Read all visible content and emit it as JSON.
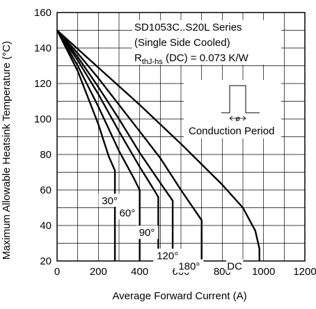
{
  "chart_data": {
    "type": "line",
    "title_lines": [
      "SD1053C..S20L Series",
      "(Single Side Cooled)"
    ],
    "rth_main": "R",
    "rth_sub": "thJ-hs",
    "rth_rest": " (DC) = 0.073 K/W",
    "inset_label": "Conduction Period",
    "inset_symbol": "ø",
    "xlabel": "Average Forward Current (A)",
    "ylabel": "Maximum Allowable Heatsink Temperature (°C)",
    "xlim": [
      0,
      1200
    ],
    "ylim": [
      20,
      160
    ],
    "x_ticks": [
      0,
      200,
      400,
      600,
      800,
      1000,
      1200
    ],
    "y_ticks": [
      20,
      40,
      60,
      80,
      100,
      120,
      140,
      160
    ],
    "grid": true,
    "series": [
      {
        "name": "30°",
        "x": [
          0,
          100,
          200,
          250,
          280,
          280
        ],
        "y": [
          150,
          127,
          97,
          79,
          71,
          20
        ]
      },
      {
        "name": "60°",
        "x": [
          0,
          100,
          200,
          300,
          370,
          400,
          400
        ],
        "y": [
          150,
          130,
          107,
          82,
          67,
          60,
          20
        ]
      },
      {
        "name": "90°",
        "x": [
          0,
          100,
          200,
          300,
          400,
          470,
          490,
          490
        ],
        "y": [
          150,
          133,
          114,
          93,
          73,
          60,
          56,
          20
        ]
      },
      {
        "name": "120°",
        "x": [
          0,
          100,
          200,
          300,
          400,
          500,
          560,
          560
        ],
        "y": [
          150,
          135,
          118,
          100,
          81,
          64,
          54,
          20
        ]
      },
      {
        "name": "180°",
        "x": [
          0,
          100,
          200,
          300,
          400,
          500,
          600,
          700,
          700
        ],
        "y": [
          150,
          137,
          123,
          108,
          93,
          78,
          60,
          43,
          20
        ]
      },
      {
        "name": "DC",
        "x": [
          0,
          200,
          400,
          600,
          800,
          900,
          960,
          980,
          980
        ],
        "y": [
          150,
          129,
          108,
          86,
          63,
          50,
          37,
          27,
          20
        ]
      }
    ]
  }
}
